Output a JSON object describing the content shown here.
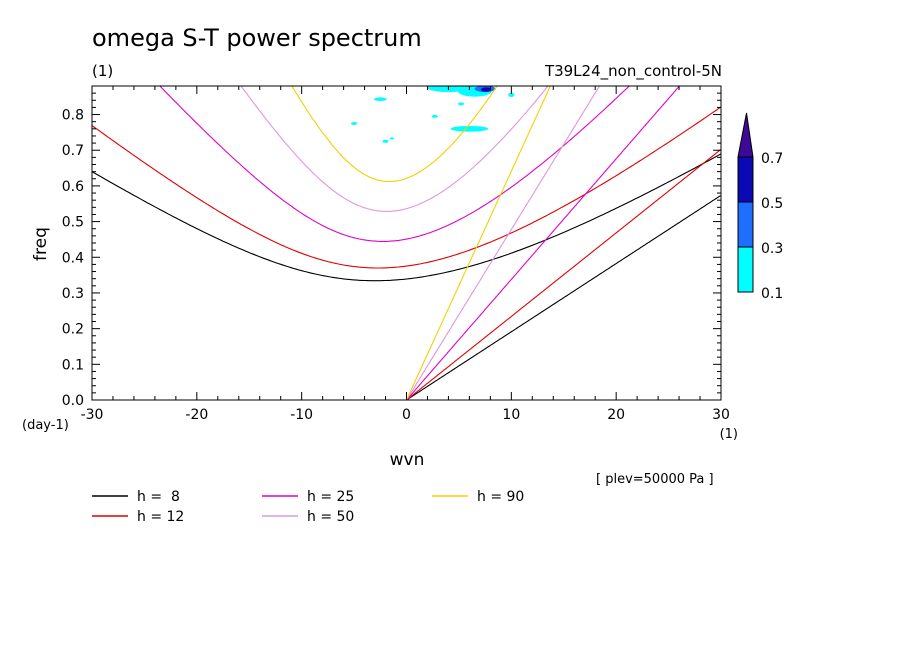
{
  "title": "omega S-T power spectrum",
  "title_unit": "(1)",
  "run_label": "T39L24_non_control-5N",
  "level_label": "[ plev=50000 Pa ]",
  "chart_data": {
    "type": "contour",
    "xlabel": "wvn",
    "xunit": "(1)",
    "ylabel": "freq",
    "yunit": "(day-1)",
    "xlim": [
      -30,
      30
    ],
    "ylim": [
      0,
      0.88
    ],
    "x_ticks": [
      "-30",
      "-20",
      "-10",
      "0",
      "10",
      "20",
      "30"
    ],
    "y_ticks": [
      "0.0",
      "0.1",
      "0.2",
      "0.3",
      "0.4",
      "0.5",
      "0.6",
      "0.7",
      "0.8"
    ],
    "colorbar": {
      "levels": [
        "0.1",
        "0.3",
        "0.5",
        "0.7"
      ],
      "colors": [
        "#00ffff",
        "#1e6fff",
        "#0a0ab4",
        "#3c0a96"
      ]
    },
    "dispersion_legend": [
      {
        "label": "h =  8",
        "h": 8,
        "color": "#000000"
      },
      {
        "label": "h = 12",
        "h": 12,
        "color": "#e00000"
      },
      {
        "label": "h = 25",
        "h": 25,
        "color": "#e000c8"
      },
      {
        "label": "h = 50",
        "h": 50,
        "color": "#e096e0"
      },
      {
        "label": "h = 90",
        "h": 90,
        "color": "#f0d200"
      }
    ]
  }
}
